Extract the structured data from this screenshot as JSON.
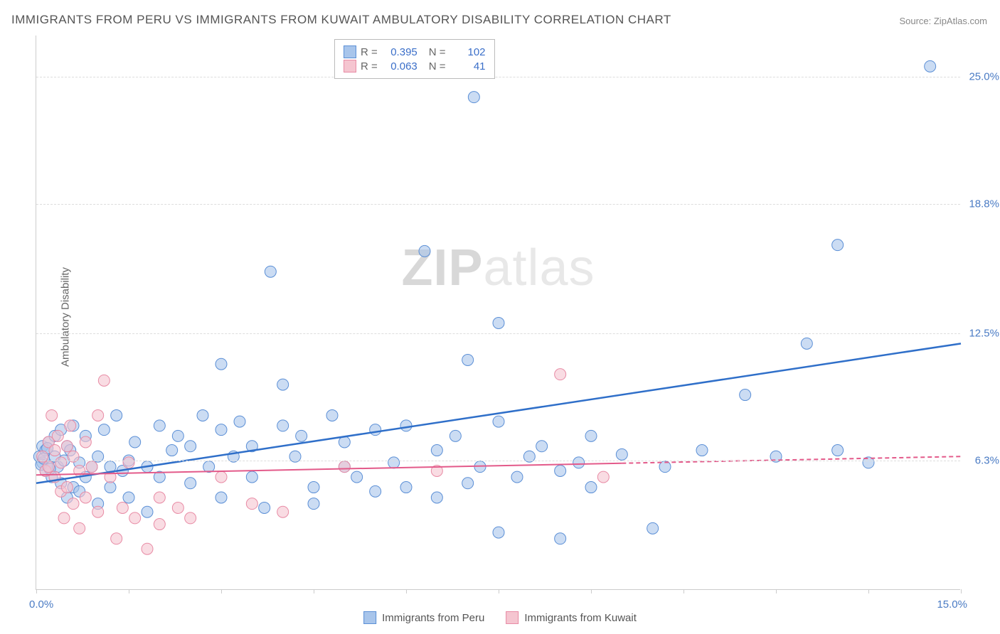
{
  "title": "IMMIGRANTS FROM PERU VS IMMIGRANTS FROM KUWAIT AMBULATORY DISABILITY CORRELATION CHART",
  "source": "Source: ZipAtlas.com",
  "ylabel": "Ambulatory Disability",
  "watermark_zip": "ZIP",
  "watermark_atlas": "atlas",
  "chart": {
    "type": "scatter-correlation",
    "xlim": [
      0,
      15
    ],
    "ylim": [
      0,
      27
    ],
    "yticks": [
      {
        "val": 6.3,
        "label": "6.3%"
      },
      {
        "val": 12.5,
        "label": "12.5%"
      },
      {
        "val": 18.8,
        "label": "18.8%"
      },
      {
        "val": 25.0,
        "label": "25.0%"
      }
    ],
    "xticks_minor": [
      0,
      1.5,
      3,
      4.5,
      6,
      7.5,
      9,
      10.5,
      12,
      13.5,
      15
    ],
    "xtick_left": "0.0%",
    "xtick_right": "15.0%",
    "background_color": "#ffffff",
    "grid_color": "#dddddd",
    "series": [
      {
        "key": "peru",
        "label": "Immigrants from Peru",
        "R": "0.395",
        "N": "102",
        "fill": "#a8c5eb",
        "stroke": "#5b8fd6",
        "line_color": "#2f6fc9",
        "line_y1": 5.2,
        "line_y2": 12.0,
        "line_x1": 0,
        "line_x2": 15,
        "dash_from_x": null,
        "marker_r": 8,
        "points": [
          [
            0.05,
            6.5
          ],
          [
            0.1,
            6.2
          ],
          [
            0.1,
            7.0
          ],
          [
            0.15,
            5.8
          ],
          [
            0.15,
            6.8
          ],
          [
            0.2,
            6.0
          ],
          [
            0.2,
            7.2
          ],
          [
            0.25,
            5.5
          ],
          [
            0.3,
            6.5
          ],
          [
            0.3,
            7.5
          ],
          [
            0.35,
            6.0
          ],
          [
            0.4,
            7.8
          ],
          [
            0.4,
            5.2
          ],
          [
            0.45,
            6.3
          ],
          [
            0.5,
            7.0
          ],
          [
            0.5,
            4.5
          ],
          [
            0.55,
            6.8
          ],
          [
            0.6,
            5.0
          ],
          [
            0.6,
            8.0
          ],
          [
            0.7,
            4.8
          ],
          [
            0.7,
            6.2
          ],
          [
            0.8,
            7.5
          ],
          [
            0.8,
            5.5
          ],
          [
            0.9,
            6.0
          ],
          [
            1.0,
            4.2
          ],
          [
            1.0,
            6.5
          ],
          [
            1.1,
            7.8
          ],
          [
            1.2,
            5.0
          ],
          [
            1.2,
            6.0
          ],
          [
            1.3,
            8.5
          ],
          [
            1.4,
            5.8
          ],
          [
            1.5,
            6.3
          ],
          [
            1.5,
            4.5
          ],
          [
            1.6,
            7.2
          ],
          [
            1.8,
            6.0
          ],
          [
            1.8,
            3.8
          ],
          [
            2.0,
            8.0
          ],
          [
            2.0,
            5.5
          ],
          [
            2.2,
            6.8
          ],
          [
            2.3,
            7.5
          ],
          [
            2.5,
            5.2
          ],
          [
            2.5,
            7.0
          ],
          [
            2.7,
            8.5
          ],
          [
            2.8,
            6.0
          ],
          [
            3.0,
            11.0
          ],
          [
            3.0,
            7.8
          ],
          [
            3.0,
            4.5
          ],
          [
            3.2,
            6.5
          ],
          [
            3.3,
            8.2
          ],
          [
            3.5,
            7.0
          ],
          [
            3.5,
            5.5
          ],
          [
            3.7,
            4.0
          ],
          [
            3.8,
            15.5
          ],
          [
            4.0,
            8.0
          ],
          [
            4.0,
            10.0
          ],
          [
            4.2,
            6.5
          ],
          [
            4.3,
            7.5
          ],
          [
            4.5,
            5.0
          ],
          [
            4.5,
            4.2
          ],
          [
            4.8,
            8.5
          ],
          [
            5.0,
            6.0
          ],
          [
            5.0,
            7.2
          ],
          [
            5.2,
            5.5
          ],
          [
            5.5,
            4.8
          ],
          [
            5.5,
            7.8
          ],
          [
            5.8,
            6.2
          ],
          [
            6.0,
            5.0
          ],
          [
            6.0,
            8.0
          ],
          [
            6.3,
            16.5
          ],
          [
            6.5,
            4.5
          ],
          [
            6.5,
            6.8
          ],
          [
            6.8,
            7.5
          ],
          [
            7.0,
            11.2
          ],
          [
            7.0,
            5.2
          ],
          [
            7.1,
            24.0
          ],
          [
            7.2,
            6.0
          ],
          [
            7.5,
            8.2
          ],
          [
            7.5,
            13.0
          ],
          [
            7.5,
            2.8
          ],
          [
            7.8,
            5.5
          ],
          [
            8.0,
            6.5
          ],
          [
            8.2,
            7.0
          ],
          [
            8.5,
            5.8
          ],
          [
            8.5,
            2.5
          ],
          [
            8.8,
            6.2
          ],
          [
            9.0,
            5.0
          ],
          [
            9.0,
            7.5
          ],
          [
            9.5,
            6.6
          ],
          [
            10.0,
            3.0
          ],
          [
            10.2,
            6.0
          ],
          [
            10.8,
            6.8
          ],
          [
            11.5,
            9.5
          ],
          [
            12.0,
            6.5
          ],
          [
            12.5,
            12.0
          ],
          [
            13.0,
            16.8
          ],
          [
            13.0,
            6.8
          ],
          [
            13.5,
            6.2
          ],
          [
            14.5,
            25.5
          ],
          [
            0.08,
            6.1
          ],
          [
            0.12,
            6.4
          ],
          [
            0.18,
            6.9
          ],
          [
            0.22,
            5.9
          ]
        ]
      },
      {
        "key": "kuwait",
        "label": "Immigrants from Kuwait",
        "R": "0.063",
        "N": "41",
        "fill": "#f5c5d0",
        "stroke": "#e88ba5",
        "line_color": "#e35a8a",
        "line_y1": 5.6,
        "line_y2": 6.5,
        "line_x1": 0,
        "line_x2": 15,
        "dash_from_x": 9.5,
        "marker_r": 8,
        "points": [
          [
            0.1,
            6.5
          ],
          [
            0.15,
            5.8
          ],
          [
            0.2,
            7.2
          ],
          [
            0.2,
            6.0
          ],
          [
            0.25,
            8.5
          ],
          [
            0.3,
            5.5
          ],
          [
            0.3,
            6.8
          ],
          [
            0.35,
            7.5
          ],
          [
            0.4,
            4.8
          ],
          [
            0.4,
            6.2
          ],
          [
            0.45,
            3.5
          ],
          [
            0.5,
            7.0
          ],
          [
            0.5,
            5.0
          ],
          [
            0.55,
            8.0
          ],
          [
            0.6,
            4.2
          ],
          [
            0.6,
            6.5
          ],
          [
            0.7,
            3.0
          ],
          [
            0.7,
            5.8
          ],
          [
            0.8,
            7.2
          ],
          [
            0.8,
            4.5
          ],
          [
            0.9,
            6.0
          ],
          [
            1.0,
            8.5
          ],
          [
            1.0,
            3.8
          ],
          [
            1.1,
            10.2
          ],
          [
            1.2,
            5.5
          ],
          [
            1.3,
            2.5
          ],
          [
            1.4,
            4.0
          ],
          [
            1.5,
            6.2
          ],
          [
            1.6,
            3.5
          ],
          [
            1.8,
            2.0
          ],
          [
            2.0,
            4.5
          ],
          [
            2.0,
            3.2
          ],
          [
            2.3,
            4.0
          ],
          [
            2.5,
            3.5
          ],
          [
            3.0,
            5.5
          ],
          [
            3.5,
            4.2
          ],
          [
            4.0,
            3.8
          ],
          [
            5.0,
            6.0
          ],
          [
            6.5,
            5.8
          ],
          [
            8.5,
            10.5
          ],
          [
            9.2,
            5.5
          ]
        ]
      }
    ]
  },
  "legend": {
    "r_label": "R =",
    "n_label": "N ="
  }
}
